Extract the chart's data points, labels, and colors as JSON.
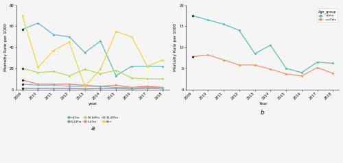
{
  "panel_a": {
    "years": [
      2009,
      2010,
      2011,
      2012,
      2013,
      2014,
      2015,
      2016,
      2017,
      2018
    ],
    "series": {
      "<1Yrs": [
        57,
        63,
        52,
        50,
        35,
        46,
        13,
        22,
        22,
        22
      ],
      "1-4Yrs": [
        9,
        5,
        5,
        5,
        4,
        3,
        4,
        2,
        3,
        2
      ],
      "5-14Yrs": [
        1,
        1,
        1,
        1,
        0.5,
        1,
        1,
        0.5,
        1,
        1
      ],
      "15-49Yrs": [
        5,
        4,
        4,
        3,
        3,
        3,
        2,
        2,
        2,
        2
      ],
      "50-64Yrs": [
        20,
        16,
        17,
        13,
        19,
        15,
        18,
        11,
        10,
        10
      ],
      "65+": [
        70,
        21,
        37,
        45,
        3,
        19,
        55,
        50,
        22,
        28
      ]
    },
    "colors": {
      "<1Yrs": "#5bbcb8",
      "1-4Yrs": "#f08070",
      "5-14Yrs": "#9090a8",
      "15-49Yrs": "#80b8cc",
      "50-64Yrs": "#b8d85a",
      "65+": "#e8d840"
    },
    "ylabel": "Mortality Rate per 1000",
    "xlabel": "year",
    "ylim": [
      0,
      80
    ],
    "yticks": [
      0,
      20,
      40,
      60,
      80
    ],
    "label": "a",
    "bg_color": "#f5f5f5"
  },
  "panel_b": {
    "years": [
      2009,
      2010,
      2011,
      2012,
      2013,
      2014,
      2015,
      2016,
      2017,
      2018
    ],
    "series": {
      "<5Yrs": [
        17.5,
        16.5,
        15.5,
        14,
        8.5,
        10.5,
        5,
        4,
        6.5,
        6.2
      ],
      ">=5Yrs": [
        7.8,
        8.2,
        7.0,
        5.8,
        5.8,
        4.8,
        3.7,
        3.2,
        5.2,
        3.8
      ]
    },
    "colors": {
      "<5Yrs": "#5bbcb0",
      ">=5Yrs": "#f0956a"
    },
    "ylabel": "Mortality Rate per 1000",
    "xlabel": "Year",
    "ylim": [
      0,
      20
    ],
    "yticks": [
      0,
      5,
      10,
      15,
      20
    ],
    "legend_title": "Age_group",
    "label": "b",
    "bg_color": "#f5f5f5"
  },
  "fig_bg": "#f5f5f5"
}
